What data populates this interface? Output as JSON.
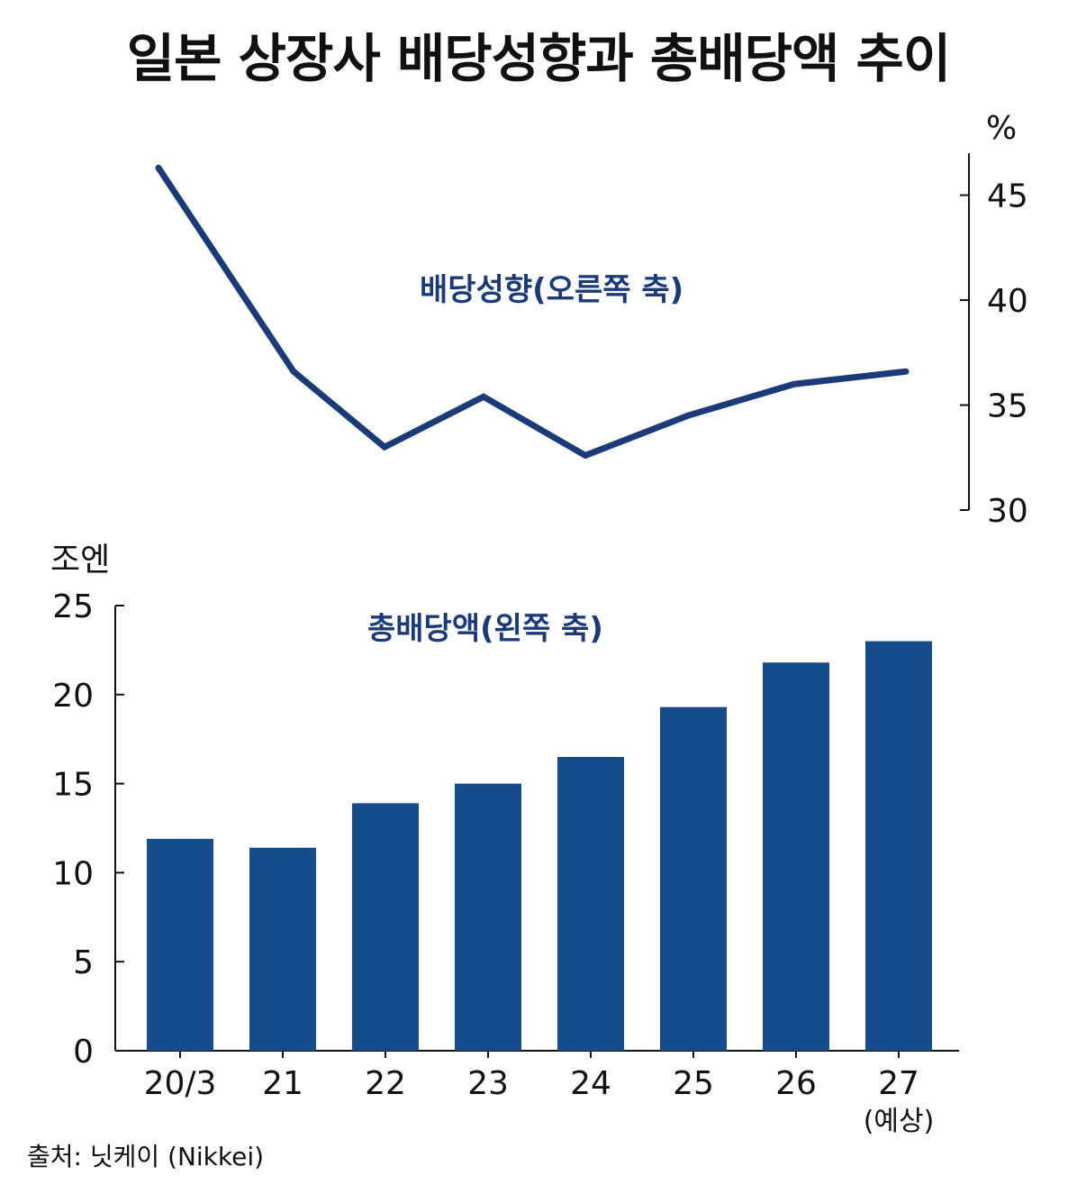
{
  "title": "일본 상장사 배당성향과 총배당액 추이",
  "source": "출처: 닛케이 (Nikkei)",
  "colors": {
    "bar": "#154c8b",
    "line": "#1b3a78",
    "axis": "#111111"
  },
  "chart_data": [
    {
      "type": "line",
      "series_label": "배당성향(오른쪽 축)",
      "unit": "%",
      "y_axis_side": "right",
      "ylim": [
        30,
        47
      ],
      "yticks": [
        30,
        35,
        40,
        45
      ],
      "categories": [
        "20/3",
        "21",
        "22",
        "23",
        "24",
        "25",
        "26",
        "27"
      ],
      "values": [
        46.3,
        36.6,
        33.0,
        35.4,
        32.6,
        34.5,
        36.0,
        36.6
      ]
    },
    {
      "type": "bar",
      "series_label": "총배당액(왼쪽 축)",
      "unit": "조엔",
      "y_axis_side": "left",
      "ylim": [
        0,
        25
      ],
      "yticks": [
        0,
        5,
        10,
        15,
        20,
        25
      ],
      "categories": [
        "20/3",
        "21",
        "22",
        "23",
        "24",
        "25",
        "26",
        "27"
      ],
      "category_notes": [
        "",
        "",
        "",
        "",
        "",
        "",
        "",
        "(예상)"
      ],
      "values": [
        11.9,
        11.4,
        13.9,
        15.0,
        16.5,
        19.3,
        21.8,
        23.0
      ]
    }
  ]
}
